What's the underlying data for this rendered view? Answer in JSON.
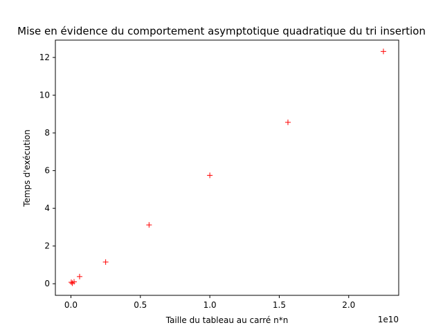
{
  "chart_data": {
    "type": "scatter",
    "title": "Mise en évidence du comportement asymptotique quadratique du tri insertion",
    "xlabel": "Taille du tableau au carré n*n",
    "ylabel": "Temps d'exécution",
    "x_offset_label": "1e10",
    "xlim": [
      -1120000000.0,
      23600000000.0
    ],
    "ylim": [
      -0.615,
      12.92
    ],
    "xticks": [
      0.0,
      0.5,
      1.0,
      1.5,
      2.0
    ],
    "xtick_labels": [
      "0.0",
      "0.5",
      "1.0",
      "1.5",
      "2.0"
    ],
    "xtick_scale": 10000000000.0,
    "yticks": [
      0,
      2,
      4,
      6,
      8,
      10,
      12
    ],
    "ytick_labels": [
      "0",
      "2",
      "4",
      "6",
      "8",
      "10",
      "12"
    ],
    "grid": false,
    "marker": "+",
    "series": [
      {
        "color": "#ff0000",
        "points": [
          {
            "x": 100000000.0,
            "y": 0.03
          },
          {
            "x": 25000000.0,
            "y": 0.08
          },
          {
            "x": 225000000.0,
            "y": 0.1
          },
          {
            "x": 625000000.0,
            "y": 0.38
          },
          {
            "x": 2500000000.0,
            "y": 1.15
          },
          {
            "x": 5625000000.0,
            "y": 3.12
          },
          {
            "x": 10000000000.0,
            "y": 5.75
          },
          {
            "x": 15625000000.0,
            "y": 8.56
          },
          {
            "x": 22500000000.0,
            "y": 12.32
          }
        ]
      }
    ]
  }
}
